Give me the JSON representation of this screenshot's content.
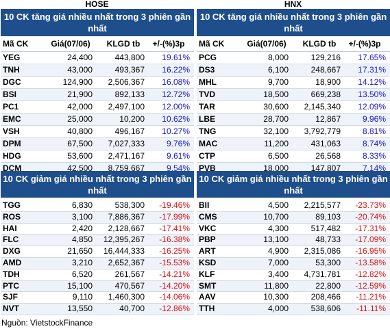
{
  "exchanges": {
    "left": "HOSE",
    "right": "HNX"
  },
  "headers": {
    "top": "10 CK tăng giá nhiều nhất trong 3 phiên gần nhất",
    "bottom": "10 CK giảm giá nhiều nhất trong 3 phiên gần nhất"
  },
  "columns": {
    "code": "Mã CK",
    "price": "Giá(07/06)",
    "volume": "KLGD tb",
    "change": "+/-(%)3p"
  },
  "hose_up": [
    {
      "code": "YEG",
      "price": "24,400",
      "volume": "443,800",
      "change": "19.61%"
    },
    {
      "code": "TNH",
      "price": "43,000",
      "volume": "493,367",
      "change": "16.22%"
    },
    {
      "code": "DGC",
      "price": "124,900",
      "volume": "2,506,367",
      "change": "16.08%"
    },
    {
      "code": "BSI",
      "price": "21,900",
      "volume": "892,133",
      "change": "12.72%"
    },
    {
      "code": "PC1",
      "price": "42,000",
      "volume": "2,497,100",
      "change": "12.00%"
    },
    {
      "code": "EMC",
      "price": "25,000",
      "volume": "10,200",
      "change": "10.62%"
    },
    {
      "code": "VSH",
      "price": "40,800",
      "volume": "496,167",
      "change": "10.27%"
    },
    {
      "code": "DPM",
      "price": "67,500",
      "volume": "7,027,333",
      "change": "9.76%"
    },
    {
      "code": "HDG",
      "price": "53,600",
      "volume": "2,471,167",
      "change": "9.61%"
    },
    {
      "code": "DCM",
      "price": "42,500",
      "volume": "8,759,667",
      "change": "9.54%"
    }
  ],
  "hnx_up": [
    {
      "code": "PCG",
      "price": "8,000",
      "volume": "129,216",
      "change": "17.65%"
    },
    {
      "code": "DS3",
      "price": "6,100",
      "volume": "248,667",
      "change": "17.31%"
    },
    {
      "code": "MHL",
      "price": "9,700",
      "volume": "18,900",
      "change": "14.12%"
    },
    {
      "code": "TVD",
      "price": "18,500",
      "volume": "669,238",
      "change": "13.50%"
    },
    {
      "code": "TAR",
      "price": "30,600",
      "volume": "2,145,340",
      "change": "12.09%"
    },
    {
      "code": "LBE",
      "price": "28,700",
      "volume": "12,867",
      "change": "9.96%"
    },
    {
      "code": "TNG",
      "price": "32,100",
      "volume": "3,792,779",
      "change": "8.81%"
    },
    {
      "code": "MAC",
      "price": "11,200",
      "volume": "431,063",
      "change": "8.74%"
    },
    {
      "code": "CTP",
      "price": "6,500",
      "volume": "26,568",
      "change": "8.33%"
    },
    {
      "code": "PVB",
      "price": "18,000",
      "volume": "147,807",
      "change": "7.14%"
    }
  ],
  "hose_down": [
    {
      "code": "TGG",
      "price": "6,830",
      "volume": "538,300",
      "change": "-19.46%"
    },
    {
      "code": "ROS",
      "price": "3,100",
      "volume": "7,886,367",
      "change": "-17.99%"
    },
    {
      "code": "HAI",
      "price": "2,420",
      "volume": "2,128,667",
      "change": "-17.41%"
    },
    {
      "code": "FLC",
      "price": "4,850",
      "volume": "12,395,267",
      "change": "-16.38%"
    },
    {
      "code": "DXG",
      "price": "21,650",
      "volume": "16,444,333",
      "change": "-16.25%"
    },
    {
      "code": "AMD",
      "price": "3,210",
      "volume": "2,652,367",
      "change": "-15.53%"
    },
    {
      "code": "TDH",
      "price": "6,520",
      "volume": "261,567",
      "change": "-14.21%"
    },
    {
      "code": "PTC",
      "price": "15,100",
      "volume": "470,567",
      "change": "-14.20%"
    },
    {
      "code": "SJF",
      "price": "9,110",
      "volume": "1,460,300",
      "change": "-14.06%"
    },
    {
      "code": "NVT",
      "price": "13,550",
      "volume": "40,700",
      "change": "-12.86%"
    }
  ],
  "hnx_down": [
    {
      "code": "BII",
      "price": "4,500",
      "volume": "2,215,577",
      "change": "-23.73%"
    },
    {
      "code": "CMS",
      "price": "10,700",
      "volume": "89,103",
      "change": "-20.74%"
    },
    {
      "code": "VKC",
      "price": "4,300",
      "volume": "517,482",
      "change": "-17.31%"
    },
    {
      "code": "PBP",
      "price": "13,100",
      "volume": "48,733",
      "change": "-17.09%"
    },
    {
      "code": "ART",
      "price": "4,900",
      "volume": "2,315,086",
      "change": "-16.95%"
    },
    {
      "code": "KSD",
      "price": "7,000",
      "volume": "53,300",
      "change": "-13.58%"
    },
    {
      "code": "KLF",
      "price": "3,400",
      "volume": "4,731,781",
      "change": "-12.82%"
    },
    {
      "code": "SMT",
      "price": "11,800",
      "volume": "22,800",
      "change": "-12.59%"
    },
    {
      "code": "AAV",
      "price": "10,300",
      "volume": "208,466",
      "change": "-11.21%"
    },
    {
      "code": "TTH",
      "price": "4,000",
      "volume": "538,606",
      "change": "-11.11%"
    }
  ],
  "source": "Nguồn: VietstockFinance",
  "colors": {
    "header_bg": "#1f4e8c",
    "up": "#1414d6",
    "down": "#e01010"
  }
}
